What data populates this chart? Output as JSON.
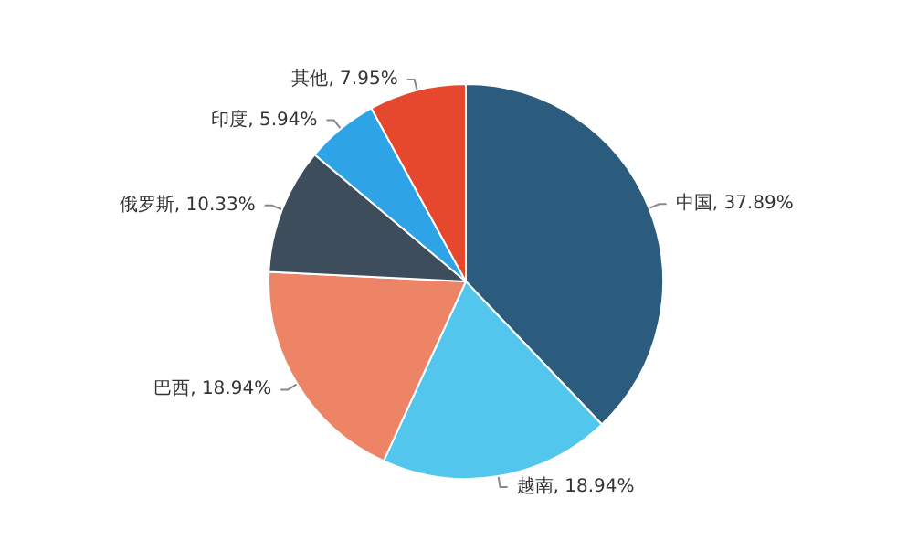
{
  "chart_data": {
    "type": "pie",
    "categories": [
      "中国",
      "越南",
      "巴西",
      "俄罗斯",
      "印度",
      "其他"
    ],
    "values": [
      37.89,
      18.94,
      18.94,
      10.33,
      5.94,
      7.95
    ],
    "colors": [
      "#2b5c7e",
      "#52c6ec",
      "#ee8466",
      "#3d4d5c",
      "#2ea3e6",
      "#e5482c"
    ],
    "value_labels": [
      ", 37.89%",
      ", 18.94%",
      ", 18.94%",
      ", 10.33%",
      ", 5.94%",
      ", 7.95%"
    ]
  }
}
